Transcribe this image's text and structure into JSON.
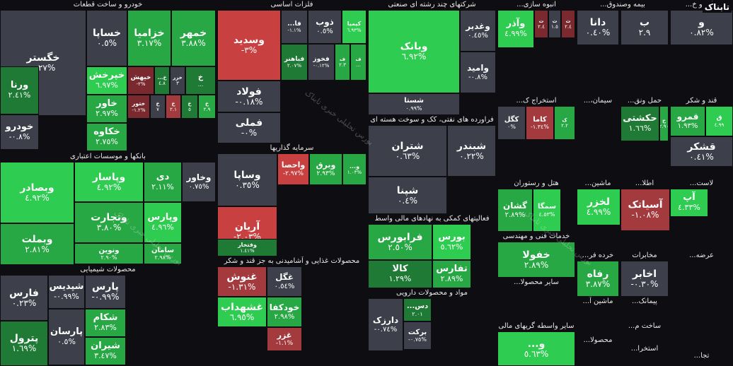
{
  "colors": {
    "up_strong": "#2ecc50",
    "up_mid": "#27a844",
    "up_weak": "#1e7a34",
    "neutral": "#3d3f4a",
    "down_weak": "#7a2a2f",
    "down_mid": "#a33a3e",
    "down_strong": "#c8403f"
  },
  "logo": "تابناک",
  "watermarks": [
    "بورس تحلیلی خبری تابناک",
    "بورس تحلیلی خبری تابناک",
    "بورس تحلیلی خبری تابناک"
  ],
  "chart_data": {
    "type": "treemap",
    "title": "",
    "sectors": [
      {
        "name": "خودرو و ساخت قطعات"
      },
      {
        "name": "فلزات اساسی"
      },
      {
        "name": "شرکتهای چند رشته ای صنعتی"
      },
      {
        "name": "انبوه سازی..."
      },
      {
        "name": "بیمه وصندوق..."
      },
      {
        "name": "عات و خ..."
      },
      {
        "name": "فراورده های نفتی، کک و سوخت هسته ای"
      },
      {
        "name": "استخراج ک..."
      },
      {
        "name": "سیمان،..."
      },
      {
        "name": "حمل ونق..."
      },
      {
        "name": "قند و شکر"
      },
      {
        "name": "سرمایه گذاریها"
      },
      {
        "name": "بانکها و موسسات اعتباری"
      },
      {
        "name": "هتل و رستوران"
      },
      {
        "name": "ماشین..."
      },
      {
        "name": "اطلا..."
      },
      {
        "name": "لاست..."
      },
      {
        "name": "فعالیتهای کمکی به نهادهای مالی واسط"
      },
      {
        "name": "خدمات فنی و مهندسی"
      },
      {
        "name": "محصولات غذایی و آشامیدنی به جز قند و شکر"
      },
      {
        "name": "خرده فر..."
      },
      {
        "name": "مخابرات"
      },
      {
        "name": "عرضه..."
      },
      {
        "name": "محصولات شیمیایی"
      },
      {
        "name": "مواد و محصولات دارویی"
      },
      {
        "name": "سایر محصولا..."
      },
      {
        "name": "ماشین آ..."
      },
      {
        "name": "پیمانک..."
      },
      {
        "name": "ساخت م..."
      },
      {
        "name": "سایر واسطه گریهای مالی"
      },
      {
        "name": "محصولا..."
      },
      {
        "name": "استخرا..."
      },
      {
        "name": "تجا..."
      }
    ],
    "tiles": [
      {
        "name": "خگستر",
        "change": "٠.٢٧%",
        "tone": "neutral"
      },
      {
        "name": "خساپا",
        "change": "٠.٥%",
        "tone": "neutral"
      },
      {
        "name": "خزامیا",
        "change": "٣.١٧%",
        "tone": "up_mid"
      },
      {
        "name": "خمهر",
        "change": "٣.٨٨%",
        "tone": "up_mid"
      },
      {
        "name": "ورنا",
        "change": "٢.٤١%",
        "tone": "up_weak"
      },
      {
        "name": "خپرخش",
        "change": "٦.٩٧%",
        "tone": "up_strong"
      },
      {
        "name": "خیهش",
        "change": "-٢%",
        "tone": "down_weak"
      },
      {
        "name": "خ...",
        "change": "٤.٨",
        "tone": "up_weak"
      },
      {
        "name": "خزر",
        "change": "٣",
        "tone": "neutral"
      },
      {
        "name": "خ",
        "change": "...",
        "tone": "up_weak"
      },
      {
        "name": "خاور",
        "change": "٢.٩٧%",
        "tone": "up_mid"
      },
      {
        "name": "ختور",
        "change": "-١.٢%",
        "tone": "down_weak"
      },
      {
        "name": "خ",
        "change": "٧",
        "tone": "neutral"
      },
      {
        "name": "خ",
        "change": "٢.١",
        "tone": "down_mid"
      },
      {
        "name": "خ",
        "change": "٥",
        "tone": "up_weak"
      },
      {
        "name": "خ",
        "change": "٢.٩",
        "tone": "up_mid"
      },
      {
        "name": "خودرو",
        "change": "-٠.٨%",
        "tone": "neutral"
      },
      {
        "name": "خکاوه",
        "change": "٢.٧٥%",
        "tone": "up_mid"
      },
      {
        "name": "وسدید",
        "change": "-٣%",
        "tone": "down_strong"
      },
      {
        "name": "فا...",
        "change": "-١.١%",
        "tone": "neutral"
      },
      {
        "name": "ذوب",
        "change": "٠.٥%",
        "tone": "neutral"
      },
      {
        "name": "کیمیا",
        "change": "٦.٩٣%",
        "tone": "up_strong"
      },
      {
        "name": "فباهنر",
        "change": "٢.٠٧%",
        "tone": "up_weak"
      },
      {
        "name": "فخوز",
        "change": "-٠.١٢%",
        "tone": "neutral"
      },
      {
        "name": "ف",
        "change": "٢.٣",
        "tone": "up_mid"
      },
      {
        "name": "ف",
        "change": "...",
        "tone": "up_mid"
      },
      {
        "name": "فولاد",
        "change": "-٠.١٨%",
        "tone": "neutral"
      },
      {
        "name": "فملی",
        "change": "-٠%",
        "tone": "neutral"
      },
      {
        "name": "وبانک",
        "change": "٦.٩٢%",
        "tone": "up_strong"
      },
      {
        "name": "وغدیر",
        "change": "٠.٤٥%",
        "tone": "neutral"
      },
      {
        "name": "وامید",
        "change": "-٠.٨%",
        "tone": "neutral"
      },
      {
        "name": "شستا",
        "change": "٠.٩٩%",
        "tone": "neutral"
      },
      {
        "name": "وآذر",
        "change": "٤.٩٩%",
        "tone": "up_strong"
      },
      {
        "name": "ث",
        "change": "٢.٤",
        "tone": "down_weak"
      },
      {
        "name": "ث",
        "change": "١.٥",
        "tone": "neutral"
      },
      {
        "name": "ث",
        "change": "٢.٤",
        "tone": "down_weak"
      },
      {
        "name": "دانا",
        "change": "٠.٤٠%",
        "tone": "neutral"
      },
      {
        "name": "ب",
        "change": "٢.٩",
        "tone": "neutral"
      },
      {
        "name": "و",
        "change": "٠.٨٢%",
        "tone": "neutral"
      },
      {
        "name": "شتران",
        "change": "٠.٦٣%",
        "tone": "neutral"
      },
      {
        "name": "شبندر",
        "change": "٠.٢٢%",
        "tone": "neutral"
      },
      {
        "name": "شپنا",
        "change": "٠.٤%",
        "tone": "neutral"
      },
      {
        "name": "کگل",
        "change": "٠%",
        "tone": "neutral"
      },
      {
        "name": "کاما",
        "change": "-١.٣٤%",
        "tone": "down_mid"
      },
      {
        "name": "ک",
        "change": "٢.٢",
        "tone": "up_mid"
      },
      {
        "name": "حکشتی",
        "change": "١.٦٦%",
        "tone": "up_weak"
      },
      {
        "name": "ح",
        "change": "٢.٩٠",
        "tone": "up_mid"
      },
      {
        "name": "قمرو",
        "change": "١.٩٣%",
        "tone": "up_mid"
      },
      {
        "name": "ق",
        "change": "٤.٩٩",
        "tone": "up_strong"
      },
      {
        "name": "قشکر",
        "change": "٠.٤١%",
        "tone": "neutral"
      },
      {
        "name": "وساپا",
        "change": "٠.٣٥%",
        "tone": "neutral"
      },
      {
        "name": "واحصا",
        "change": "-٢.٩٧%",
        "tone": "down_strong"
      },
      {
        "name": "وبرق",
        "change": "٢.٩٣%",
        "tone": "up_mid"
      },
      {
        "name": "و...",
        "change": "١.٠٣%",
        "tone": "up_mid"
      },
      {
        "name": "آریان",
        "change": "-٢.٠٣%",
        "tone": "down_strong"
      },
      {
        "name": "وفتخار",
        "change": "١.٤١%",
        "tone": "up_weak"
      },
      {
        "name": "وبصادر",
        "change": "٤.٩٢%",
        "tone": "up_strong"
      },
      {
        "name": "وپاسار",
        "change": "٤.٩٢%",
        "tone": "up_strong"
      },
      {
        "name": "دی",
        "change": "٢.١١%",
        "tone": "up_mid"
      },
      {
        "name": "وخاور",
        "change": "٠.٧٥%",
        "tone": "neutral"
      },
      {
        "name": "وتجارت",
        "change": "٣.٨٠%",
        "tone": "up_mid"
      },
      {
        "name": "وپارس",
        "change": "٤.٩٦%",
        "tone": "up_strong"
      },
      {
        "name": "ونوین",
        "change": "٢.٩٠%",
        "tone": "up_mid"
      },
      {
        "name": "سامان",
        "change": "٢.٩٨%",
        "tone": "up_mid"
      },
      {
        "name": "وبملت",
        "change": "٢.٨١%",
        "tone": "up_mid"
      },
      {
        "name": "آپ",
        "change": "٤.٣٣%",
        "tone": "up_strong"
      },
      {
        "name": "آسیاتک",
        "change": "-١.٠٨%",
        "tone": "down_mid"
      },
      {
        "name": "لخزر",
        "change": "٤.٩٩%",
        "tone": "up_strong"
      },
      {
        "name": "تیکو",
        "change": "١.٥",
        "tone": "down_mid"
      },
      {
        "name": "گشان",
        "change": "٢.٨٩%",
        "tone": "up_mid"
      },
      {
        "name": "سمگا",
        "change": "٤.٥٣%",
        "tone": "up_strong"
      },
      {
        "name": "فرابورس",
        "change": "٢.٥٠%",
        "tone": "up_mid"
      },
      {
        "name": "بورس",
        "change": "٥.٦٢%",
        "tone": "up_strong"
      },
      {
        "name": "کالا",
        "change": "١.٢٩%",
        "tone": "up_weak"
      },
      {
        "name": "تفارس",
        "change": "٢.٨٩%",
        "tone": "up_mid"
      },
      {
        "name": "خفولا",
        "change": "٢.٨٩%",
        "tone": "up_mid"
      },
      {
        "name": "رفاه",
        "change": "٣.٨٧%",
        "tone": "up_mid"
      },
      {
        "name": "اخابر",
        "change": "-٠.٣٠%",
        "tone": "neutral"
      },
      {
        "name": "غنوش",
        "change": "-١.٣١%",
        "tone": "down_mid"
      },
      {
        "name": "غگل",
        "change": "٠.٥٤%",
        "tone": "neutral"
      },
      {
        "name": "غشهداب",
        "change": "٦.٩٥%",
        "tone": "up_strong"
      },
      {
        "name": "خودکفا",
        "change": "٢.٩٨%",
        "tone": "up_mid"
      },
      {
        "name": "غزر",
        "change": "-١.١%",
        "tone": "down_mid"
      },
      {
        "name": "فارس",
        "change": "٠.٢٣%",
        "tone": "neutral"
      },
      {
        "name": "شپدیس",
        "change": "-٠.٩٩%",
        "tone": "neutral"
      },
      {
        "name": "پارس",
        "change": "-٠.٩٩%",
        "tone": "neutral"
      },
      {
        "name": "شکام",
        "change": "٢.٨٣%",
        "tone": "up_mid"
      },
      {
        "name": "شیران",
        "change": "٣.٤٧%",
        "tone": "up_mid"
      },
      {
        "name": "پترول",
        "change": "١.٦٩%",
        "tone": "up_weak"
      },
      {
        "name": "پارسان",
        "change": "٠.٥%",
        "tone": "neutral"
      },
      {
        "name": "دارزک",
        "change": "-٠.٧٤%",
        "tone": "neutral"
      },
      {
        "name": "برکت",
        "change": "-٠.٧٥%",
        "tone": "neutral"
      },
      {
        "name": "دس...",
        "change": "٢.٠١",
        "tone": "up_weak"
      },
      {
        "name": "و...",
        "change": "٥.٦٣%",
        "tone": "up_strong"
      }
    ]
  }
}
